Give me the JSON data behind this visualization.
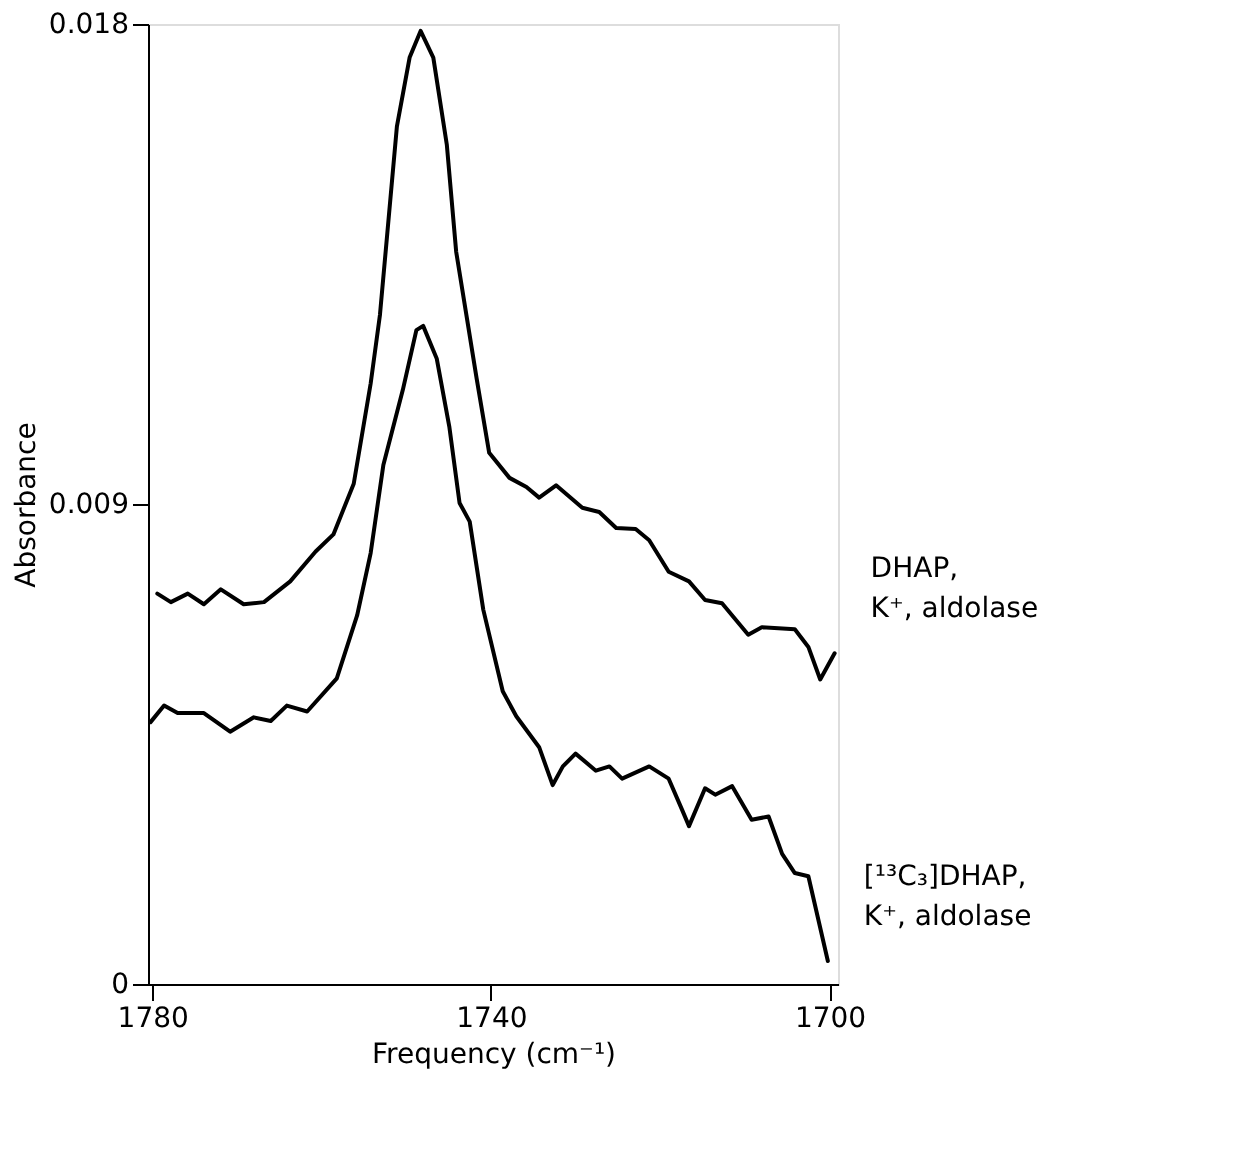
{
  "chart_data": {
    "type": "line",
    "xlabel": "Frequency (cm⁻¹)",
    "ylabel": "Absorbance",
    "xlim": [
      1780.5,
      1699
    ],
    "xticks": [
      1780,
      1740,
      1700
    ],
    "ylim": [
      0,
      0.018
    ],
    "yticks": [
      {
        "value": 0,
        "label": "0"
      },
      {
        "value": 0.009,
        "label": "0.009"
      },
      {
        "value": 0.018,
        "label": "0.018"
      }
    ],
    "grid": false,
    "legend": false,
    "marker": "none",
    "line_style": "solid",
    "series": [
      {
        "name": "DHAP,\nK⁺, aldolase",
        "color": "#000000",
        "x": [
          1779.4,
          1777.8,
          1775.8,
          1773.9,
          1771.9,
          1769.2,
          1766.8,
          1763.7,
          1760.7,
          1758.6,
          1756.2,
          1754.2,
          1753.1,
          1751.1,
          1749.6,
          1748.3,
          1746.8,
          1745.2,
          1744.1,
          1742.9,
          1741.7,
          1740.2,
          1737.8,
          1735.8,
          1734.3,
          1732.3,
          1729.2,
          1727.2,
          1725.2,
          1722.9,
          1721.3,
          1719.0,
          1716.6,
          1714.7,
          1712.7,
          1709.6,
          1708.0,
          1704.1,
          1702.5,
          1701.1,
          1699.4
        ],
        "values": [
          0.00732,
          0.00716,
          0.00732,
          0.00712,
          0.0074,
          0.00712,
          0.00716,
          0.00755,
          0.00811,
          0.00843,
          0.00938,
          0.01126,
          0.01255,
          0.01608,
          0.01737,
          0.01787,
          0.01737,
          0.01573,
          0.01373,
          0.01255,
          0.01137,
          0.00996,
          0.00949,
          0.00932,
          0.00912,
          0.00935,
          0.00893,
          0.00885,
          0.00855,
          0.00853,
          0.00832,
          0.00773,
          0.00755,
          0.0072,
          0.00714,
          0.00655,
          0.00669,
          0.00665,
          0.00632,
          0.00571,
          0.0062
        ]
      },
      {
        "name": "[¹³C₃]DHAP,\nK⁺, aldolase",
        "color": "#000000",
        "x": [
          1780.2,
          1778.6,
          1777.0,
          1773.9,
          1770.8,
          1768.0,
          1766.0,
          1764.1,
          1761.7,
          1758.2,
          1755.8,
          1754.2,
          1752.7,
          1750.4,
          1748.8,
          1748.0,
          1746.4,
          1744.9,
          1743.7,
          1742.5,
          1740.9,
          1738.6,
          1737.0,
          1734.3,
          1732.7,
          1731.5,
          1730.0,
          1727.6,
          1726.0,
          1724.5,
          1721.3,
          1719.0,
          1717.4,
          1716.6,
          1714.7,
          1713.5,
          1711.5,
          1709.2,
          1707.2,
          1705.6,
          1704.1,
          1702.5,
          1700.2
        ],
        "values": [
          0.00491,
          0.00522,
          0.00508,
          0.00508,
          0.00473,
          0.005,
          0.00493,
          0.00522,
          0.00511,
          0.00573,
          0.00691,
          0.00808,
          0.00973,
          0.01114,
          0.01226,
          0.01234,
          0.01173,
          0.01044,
          0.00902,
          0.00867,
          0.00702,
          0.00549,
          0.00502,
          0.00444,
          0.00373,
          0.00408,
          0.00432,
          0.004,
          0.00408,
          0.00385,
          0.00408,
          0.00385,
          0.00326,
          0.00296,
          0.00367,
          0.00355,
          0.00371,
          0.00308,
          0.00314,
          0.00244,
          0.00208,
          0.00202,
          0.00043
        ]
      }
    ]
  }
}
